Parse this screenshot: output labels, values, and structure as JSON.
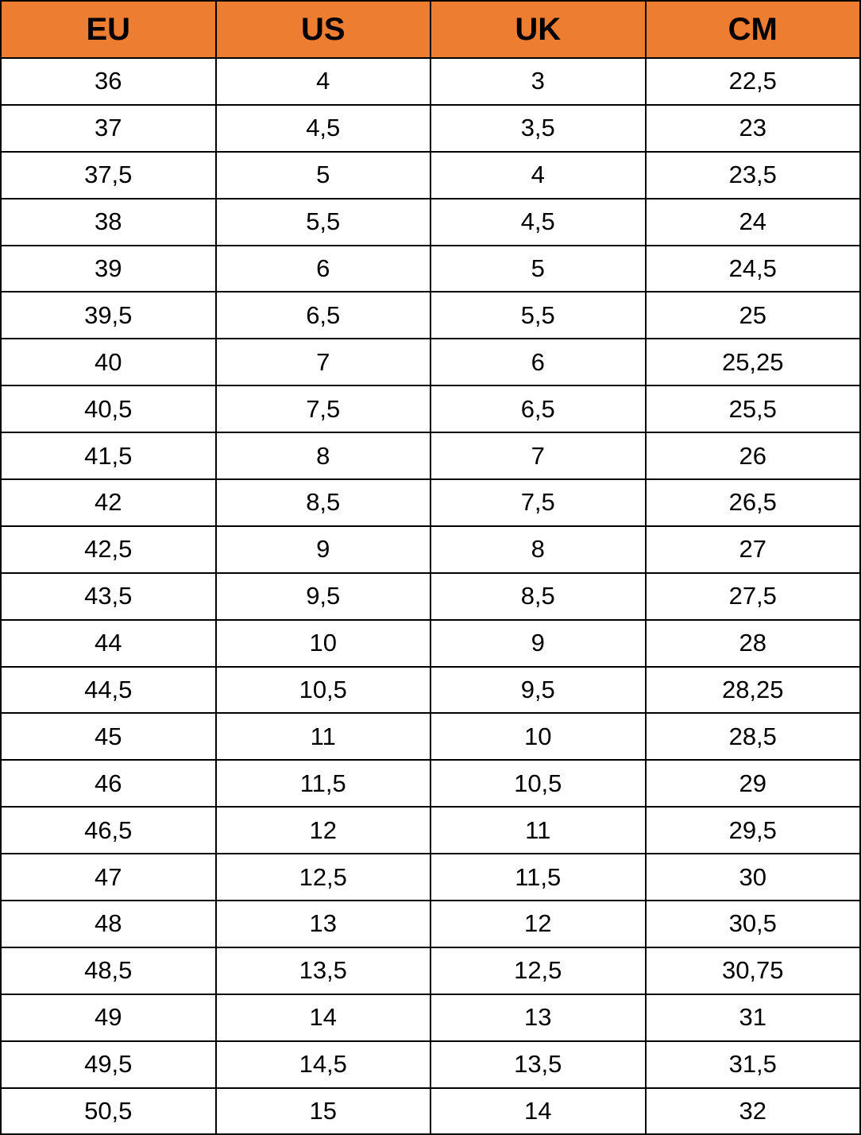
{
  "table": {
    "header_color": "#ED7D31",
    "columns": [
      "EU",
      "US",
      "UK",
      "CM"
    ],
    "rows": [
      [
        "36",
        "4",
        "3",
        "22,5"
      ],
      [
        "37",
        "4,5",
        "3,5",
        "23"
      ],
      [
        "37,5",
        "5",
        "4",
        "23,5"
      ],
      [
        "38",
        "5,5",
        "4,5",
        "24"
      ],
      [
        "39",
        "6",
        "5",
        "24,5"
      ],
      [
        "39,5",
        "6,5",
        "5,5",
        "25"
      ],
      [
        "40",
        "7",
        "6",
        "25,25"
      ],
      [
        "40,5",
        "7,5",
        "6,5",
        "25,5"
      ],
      [
        "41,5",
        "8",
        "7",
        "26"
      ],
      [
        "42",
        "8,5",
        "7,5",
        "26,5"
      ],
      [
        "42,5",
        "9",
        "8",
        "27"
      ],
      [
        "43,5",
        "9,5",
        "8,5",
        "27,5"
      ],
      [
        "44",
        "10",
        "9",
        "28"
      ],
      [
        "44,5",
        "10,5",
        "9,5",
        "28,25"
      ],
      [
        "45",
        "11",
        "10",
        "28,5"
      ],
      [
        "46",
        "11,5",
        "10,5",
        "29"
      ],
      [
        "46,5",
        "12",
        "11",
        "29,5"
      ],
      [
        "47",
        "12,5",
        "11,5",
        "30"
      ],
      [
        "48",
        "13",
        "12",
        "30,5"
      ],
      [
        "48,5",
        "13,5",
        "12,5",
        "30,75"
      ],
      [
        "49",
        "14",
        "13",
        "31"
      ],
      [
        "49,5",
        "14,5",
        "13,5",
        "31,5"
      ],
      [
        "50,5",
        "15",
        "14",
        "32"
      ]
    ]
  }
}
